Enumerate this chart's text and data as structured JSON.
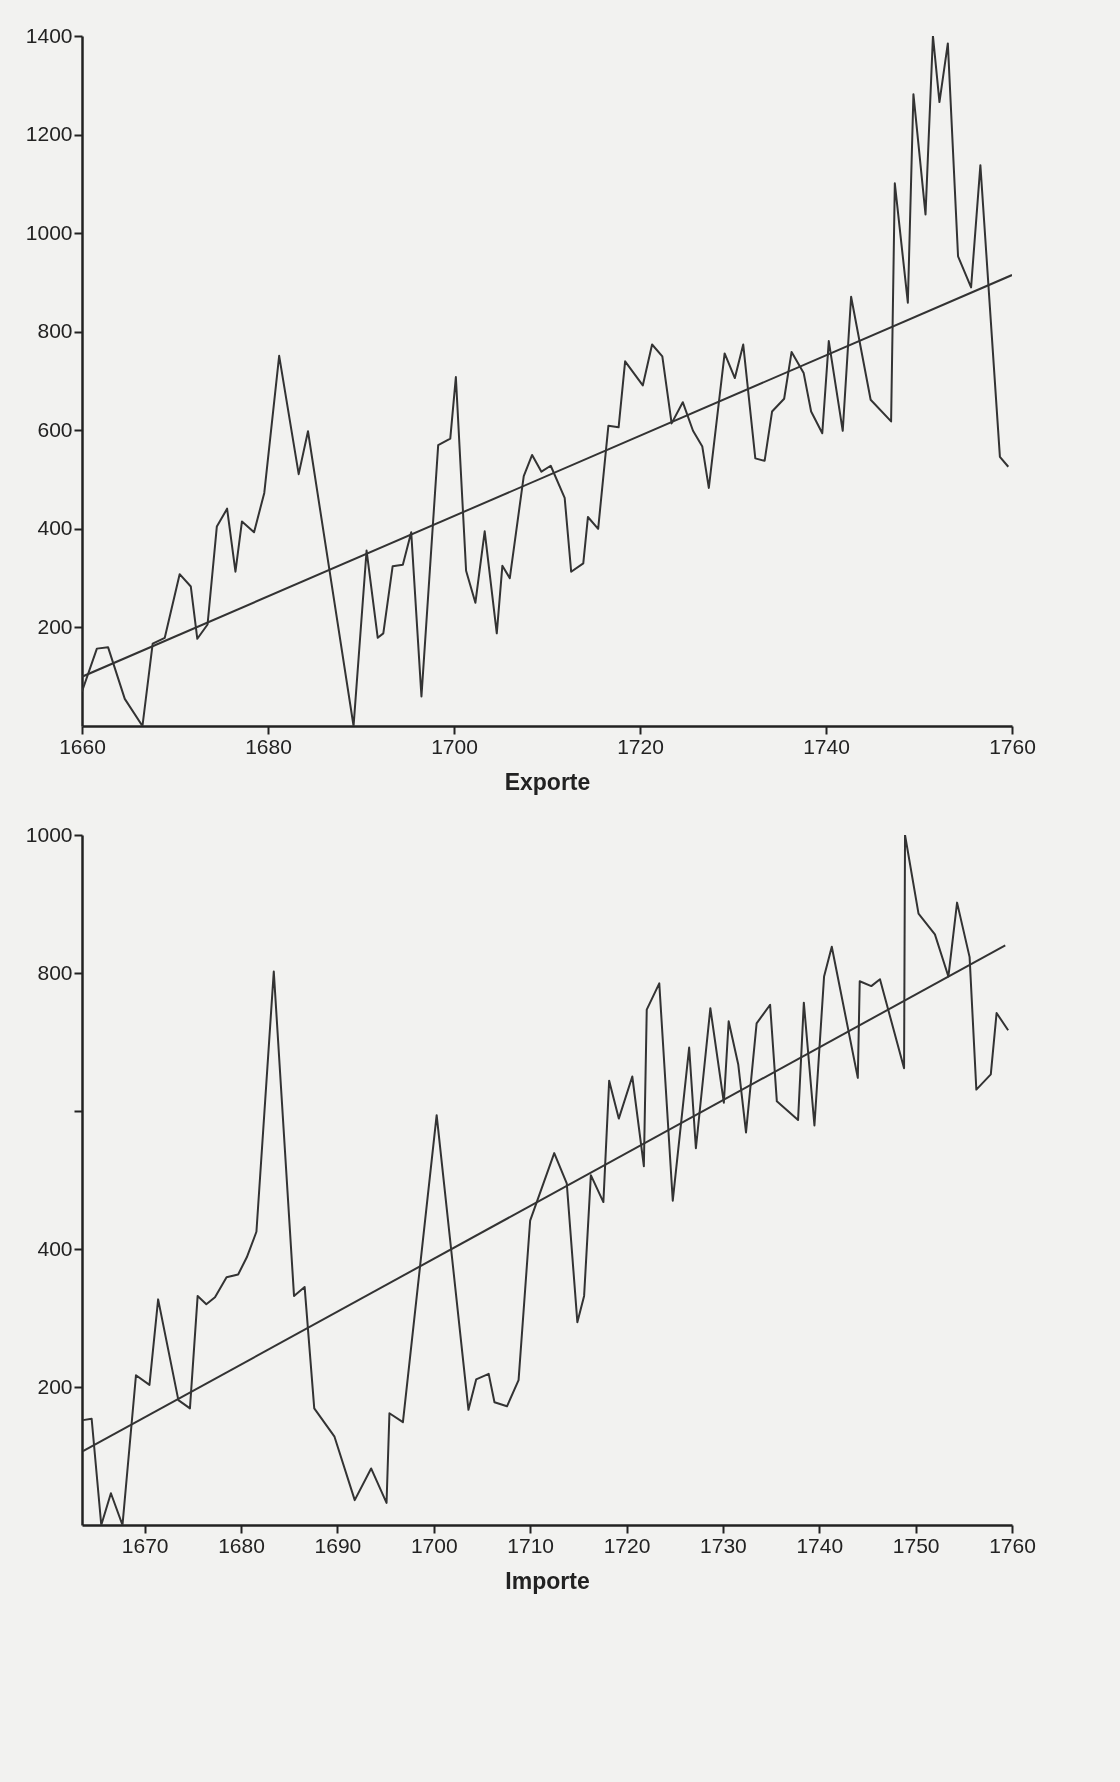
{
  "chart_data": [
    {
      "type": "line",
      "xlabel": "Exporte",
      "xlim": [
        1660,
        1760
      ],
      "xticks": [
        1660,
        1680,
        1700,
        1720,
        1740,
        1760
      ],
      "ylim": [
        0,
        1400
      ],
      "yticks": [
        200,
        400,
        600,
        800,
        1000,
        1200,
        1400
      ],
      "grid": false,
      "line_style": "solid",
      "series": [
        {
          "color": "#333333",
          "x": [
            1660.0,
            1661.6,
            1662.8,
            1664.6,
            1666.5,
            1667.6,
            1668.9,
            1670.5,
            1671.7,
            1672.4,
            1673.5,
            1674.5,
            1675.6,
            1676.5,
            1677.2,
            1678.5,
            1679.6,
            1681.2,
            1683.3,
            1684.3,
            1689.2,
            1690.6,
            1691.8,
            1692.4,
            1693.4,
            1694.5,
            1695.4,
            1696.5,
            1698.3,
            1699.6,
            1700.2,
            1701.3,
            1702.3,
            1703.3,
            1704.6,
            1705.2,
            1706.0,
            1707.5,
            1708.4,
            1709.4,
            1710.4,
            1711.9,
            1712.6,
            1713.9,
            1714.4,
            1715.5,
            1716.6,
            1717.7,
            1718.4,
            1720.3,
            1721.3,
            1722.4,
            1723.4,
            1724.6,
            1725.7,
            1726.7,
            1727.4,
            1729.1,
            1730.2,
            1731.1,
            1732.4,
            1733.4,
            1734.2,
            1735.5,
            1736.3,
            1737.6,
            1738.4,
            1739.6,
            1740.3,
            1741.8,
            1742.7,
            1744.8,
            1747.0,
            1747.4,
            1748.8,
            1749.4,
            1750.7,
            1751.5,
            1752.2,
            1753.1,
            1754.2,
            1755.6,
            1756.6,
            1758.7,
            1759.6
          ],
          "values": [
            70,
            157,
            160,
            55,
            0,
            167,
            179,
            308,
            283,
            177,
            206,
            405,
            441,
            313,
            415,
            393,
            473,
            751,
            511,
            598,
            0,
            356,
            179,
            188,
            324,
            327,
            393,
            60,
            570,
            583,
            708,
            315,
            250,
            395,
            188,
            325,
            300,
            507,
            550,
            516,
            528,
            463,
            313,
            330,
            424,
            400,
            609,
            606,
            740,
            691,
            774,
            750,
            614,
            657,
            599,
            567,
            483,
            756,
            706,
            774,
            543,
            538,
            638,
            664,
            759,
            716,
            638,
            594,
            781,
            599,
            871,
            662,
            618,
            1101,
            859,
            1282,
            1038,
            1400,
            1266,
            1385,
            953,
            890,
            1138,
            546,
            526
          ]
        },
        {
          "type": "line",
          "color": "#333333",
          "x": [
            1660,
            1760
          ],
          "values": [
            100,
            915
          ]
        }
      ]
    },
    {
      "type": "line",
      "xlabel": "Importe",
      "xlim": [
        1663.5,
        1760
      ],
      "xticks": [
        1670,
        1680,
        1690,
        1700,
        1710,
        1720,
        1730,
        1740,
        1750,
        1760
      ],
      "ylim": [
        0,
        1000
      ],
      "yticks": [
        200,
        400,
        {
          "value": 600,
          "label": null
        },
        800,
        1000
      ],
      "grid": false,
      "line_style": "solid",
      "series": [
        {
          "color": "#333333",
          "x": [
            1663.6,
            1664.5,
            1665.5,
            1666.5,
            1667.7,
            1669.1,
            1670.5,
            1671.4,
            1673.5,
            1674.7,
            1675.5,
            1676.4,
            1677.3,
            1678.5,
            1679.7,
            1680.6,
            1681.6,
            1683.4,
            1685.5,
            1686.6,
            1687.6,
            1689.7,
            1691.8,
            1693.5,
            1695.1,
            1695.4,
            1696.8,
            1700.3,
            1703.6,
            1704.4,
            1705.7,
            1706.3,
            1707.6,
            1708.8,
            1710.0,
            1712.5,
            1713.8,
            1714.9,
            1715.6,
            1716.3,
            1717.6,
            1718.2,
            1719.2,
            1720.6,
            1721.8,
            1722.1,
            1723.4,
            1724.8,
            1726.5,
            1727.2,
            1728.7,
            1730.1,
            1730.6,
            1731.6,
            1732.4,
            1733.5,
            1734.9,
            1735.6,
            1737.8,
            1738.4,
            1739.5,
            1740.5,
            1741.3,
            1744.0,
            1744.2,
            1745.4,
            1746.3,
            1748.8,
            1748.9,
            1750.3,
            1752.0,
            1753.4,
            1754.3,
            1755.6,
            1756.3,
            1757.8,
            1758.4,
            1759.6
          ],
          "values": [
            152,
            154,
            0,
            46,
            0,
            217,
            203,
            327,
            181,
            169,
            332,
            320,
            330,
            359,
            363,
            388,
            425,
            802,
            332,
            345,
            169,
            128,
            36,
            82,
            32,
            162,
            149,
            594,
            167,
            211,
            219,
            178,
            172,
            210,
            441,
            539,
            495,
            294,
            332,
            507,
            468,
            644,
            589,
            650,
            520,
            747,
            785,
            470,
            692,
            546,
            749,
            612,
            730,
            667,
            569,
            727,
            754,
            614,
            587,
            757,
            579,
            795,
            838,
            648,
            788,
            781,
            791,
            662,
            1000,
            886,
            856,
            795,
            902,
            823,
            631,
            653,
            742,
            717
          ]
        },
        {
          "type": "line",
          "color": "#333333",
          "x": [
            1663.6,
            1759.3
          ],
          "values": [
            107,
            840
          ]
        }
      ]
    }
  ]
}
